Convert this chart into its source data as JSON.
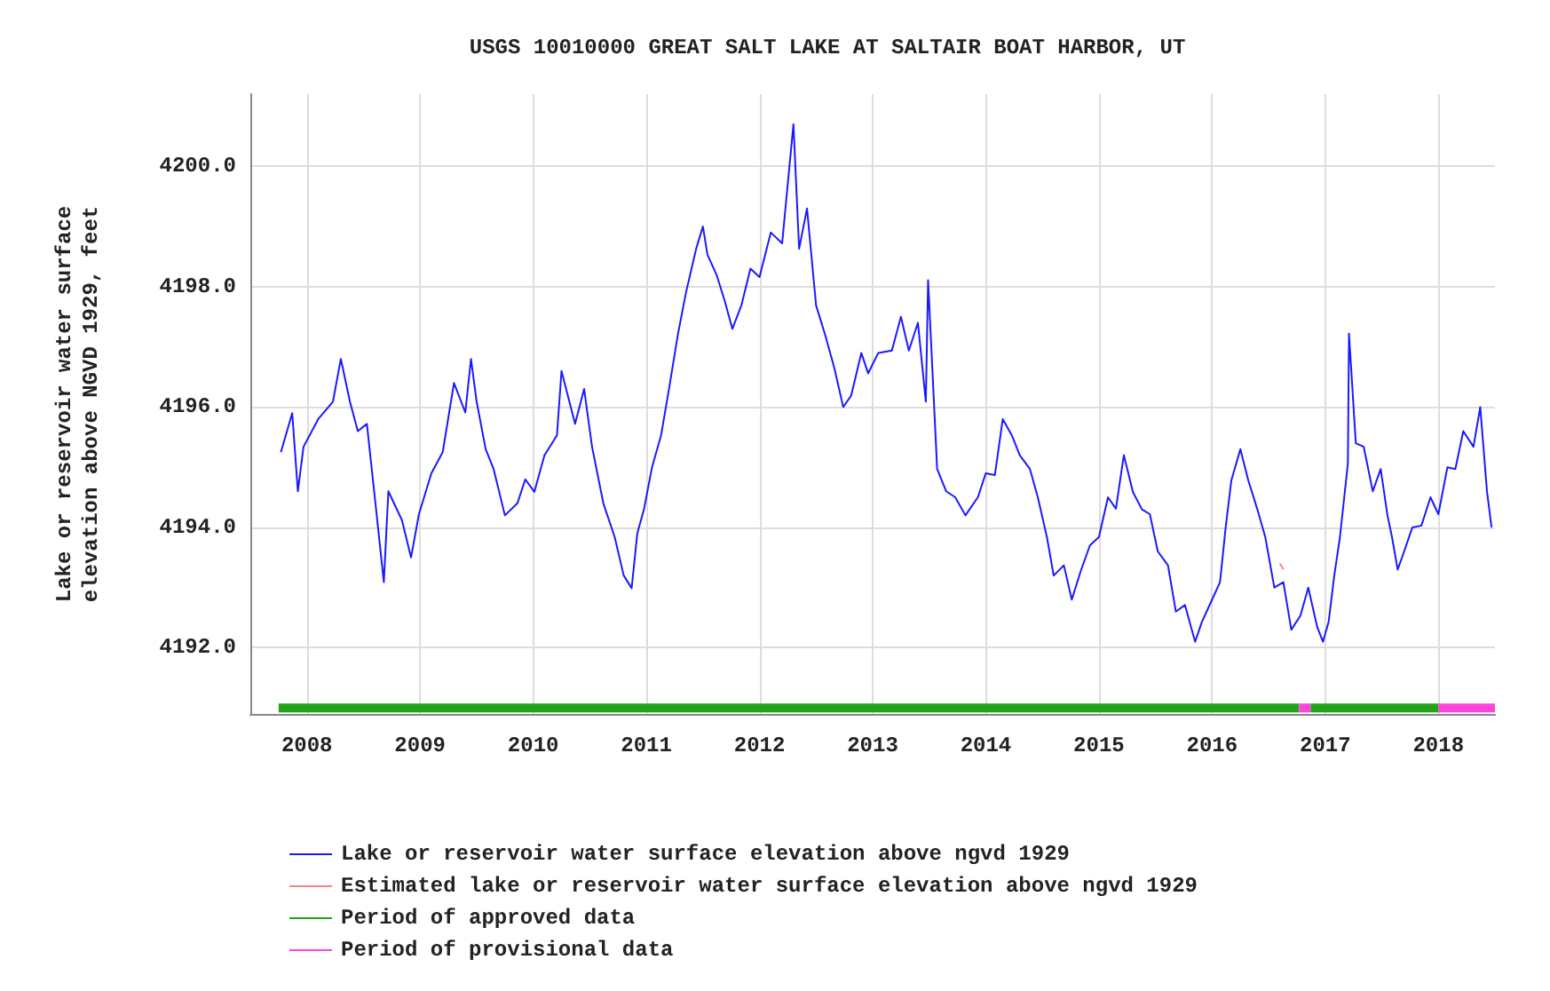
{
  "chart_data": {
    "type": "line",
    "title": "USGS 10010000 GREAT SALT LAKE AT SALTAIR BOAT HARBOR, UT",
    "ylabel": "Lake or reservoir water surface\nelevation above NGVD 1929, feet",
    "xlim": [
      2007.5,
      2018.5
    ],
    "xticks": [
      2008,
      2009,
      2010,
      2011,
      2012,
      2013,
      2014,
      2015,
      2016,
      2017,
      2018
    ],
    "ylim": [
      4190.9,
      4201.2
    ],
    "yticks": [
      {
        "value": 4192,
        "label": "4192.0"
      },
      {
        "value": 4194,
        "label": "4194.0"
      },
      {
        "value": 4196,
        "label": "4196.0"
      },
      {
        "value": 4198,
        "label": "4198.0"
      },
      {
        "value": 4200,
        "label": "4200.0"
      }
    ],
    "grid": true,
    "legend": "bottom left",
    "marker": "none",
    "line_style": "solid",
    "series": [
      {
        "name": "Lake or reservoir water surface elevation above ngvd 1929",
        "color": "#1a1aff",
        "x": [
          2007.77,
          2007.87,
          2007.92,
          2007.97,
          2008.1,
          2008.23,
          2008.3,
          2008.38,
          2008.45,
          2008.53,
          2008.6,
          2008.68,
          2008.72,
          2008.84,
          2008.92,
          2008.99,
          2009.1,
          2009.2,
          2009.3,
          2009.4,
          2009.45,
          2009.5,
          2009.58,
          2009.65,
          2009.75,
          2009.86,
          2009.93,
          2010.01,
          2010.1,
          2010.21,
          2010.25,
          2010.37,
          2010.45,
          2010.52,
          2010.62,
          2010.72,
          2010.8,
          2010.87,
          2010.92,
          2010.98,
          2011.05,
          2011.13,
          2011.2,
          2011.28,
          2011.35,
          2011.44,
          2011.5,
          2011.54,
          2011.62,
          2011.69,
          2011.76,
          2011.84,
          2011.92,
          2012.0,
          2012.1,
          2012.2,
          2012.3,
          2012.35,
          2012.42,
          2012.5,
          2012.58,
          2012.66,
          2012.74,
          2012.81,
          2012.9,
          2012.96,
          2013.05,
          2013.17,
          2013.25,
          2013.32,
          2013.4,
          2013.47,
          2013.49,
          2013.57,
          2013.65,
          2013.73,
          2013.82,
          2013.93,
          2014.0,
          2014.08,
          2014.15,
          2014.23,
          2014.3,
          2014.39,
          2014.46,
          2014.54,
          2014.6,
          2014.69,
          2014.76,
          2014.84,
          2014.92,
          2015.0,
          2015.08,
          2015.15,
          2015.22,
          2015.3,
          2015.38,
          2015.45,
          2015.52,
          2015.61,
          2015.68,
          2015.76,
          2015.85,
          2015.91,
          2016.0,
          2016.07,
          2016.12,
          2016.17,
          2016.25,
          2016.32,
          2016.4,
          2016.47,
          2016.55,
          2016.63,
          2016.7,
          2016.78,
          2016.85,
          2016.93,
          2016.98,
          2017.03,
          2017.08,
          2017.13,
          2017.2,
          2017.21,
          2017.27,
          2017.34,
          2017.42,
          2017.49,
          2017.55,
          2017.59,
          2017.64,
          2017.69,
          2017.77,
          2017.85,
          2017.93,
          2018.0,
          2018.08,
          2018.15,
          2018.22,
          2018.31,
          2018.37,
          2018.43,
          2018.47
        ],
        "values": [
          4195.25,
          4195.9,
          4194.6,
          4195.34,
          4195.8,
          4196.09,
          4196.8,
          4196.09,
          4195.6,
          4195.72,
          4194.5,
          4193.09,
          4194.6,
          4194.12,
          4193.5,
          4194.22,
          4194.9,
          4195.25,
          4196.4,
          4195.91,
          4196.8,
          4196.09,
          4195.3,
          4194.97,
          4194.2,
          4194.4,
          4194.8,
          4194.59,
          4195.2,
          4195.53,
          4196.6,
          4195.72,
          4196.3,
          4195.34,
          4194.4,
          4193.84,
          4193.2,
          4192.99,
          4193.9,
          4194.31,
          4195.0,
          4195.53,
          4196.3,
          4197.22,
          4197.9,
          4198.63,
          4199.0,
          4198.53,
          4198.2,
          4197.78,
          4197.3,
          4197.69,
          4198.3,
          4198.16,
          4198.9,
          4198.72,
          4200.7,
          4198.63,
          4199.3,
          4197.69,
          4197.2,
          4196.66,
          4196.0,
          4196.19,
          4196.9,
          4196.56,
          4196.9,
          4196.94,
          4197.5,
          4196.94,
          4197.4,
          4196.09,
          4198.11,
          4194.97,
          4194.6,
          4194.5,
          4194.2,
          4194.5,
          4194.9,
          4194.87,
          4195.8,
          4195.53,
          4195.2,
          4194.97,
          4194.5,
          4193.84,
          4193.2,
          4193.37,
          4192.8,
          4193.28,
          4193.7,
          4193.84,
          4194.5,
          4194.31,
          4195.2,
          4194.59,
          4194.3,
          4194.22,
          4193.6,
          4193.37,
          4192.6,
          4192.71,
          4192.1,
          4192.43,
          4192.8,
          4193.09,
          4194.0,
          4194.78,
          4195.3,
          4194.78,
          4194.3,
          4193.84,
          4193.0,
          4193.09,
          4192.3,
          4192.53,
          4193.0,
          4192.34,
          4192.1,
          4192.43,
          4193.2,
          4193.84,
          4195.06,
          4197.22,
          4195.4,
          4195.34,
          4194.6,
          4194.97,
          4194.2,
          4193.84,
          4193.3,
          4193.56,
          4194.0,
          4194.03,
          4194.5,
          4194.22,
          4195.0,
          4194.97,
          4195.6,
          4195.34,
          4196.0,
          4194.59,
          4194.0
        ]
      },
      {
        "name": "Estimated lake or reservoir water surface elevation above ngvd 1929",
        "color": "#ff8080",
        "x": [
          2016.6,
          2016.63
        ],
        "values": [
          4193.4,
          4193.3
        ]
      },
      {
        "name": "Period of approved data",
        "type": "step",
        "color": "#22a31a",
        "x": [
          2007.75,
          2016.77,
          2016.8,
          2016.87,
          2018.0
        ],
        "values": [
          4191.0,
          4191.0,
          null,
          4191.0,
          4191.0
        ]
      },
      {
        "name": "Period of provisional data",
        "type": "step",
        "color": "#ff44dd",
        "x": [
          2016.77,
          2016.87,
          2016.9,
          2018.0,
          2018.5
        ],
        "values": [
          4191.0,
          4191.0,
          null,
          4191.0,
          4191.0
        ]
      }
    ]
  }
}
